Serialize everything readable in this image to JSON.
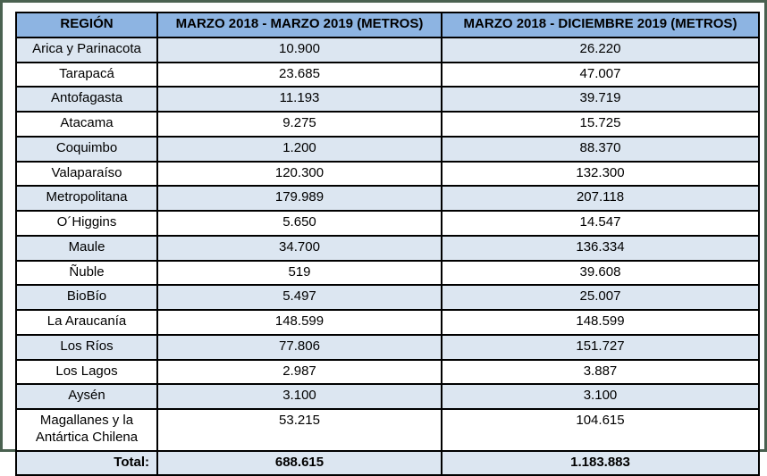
{
  "colors": {
    "header_bg": "#8db4e2",
    "band_bg": "#dce6f1",
    "row_bg": "#ffffff",
    "cell_border": "#000000",
    "frame_border": "#49604f"
  },
  "table": {
    "columns": [
      "REGIÓN",
      "MARZO 2018 - MARZO 2019 (METROS)",
      "MARZO 2018 - DICIEMBRE 2019 (METROS)"
    ],
    "rows": [
      {
        "region": "Arica y Parinacota",
        "v1": "10.900",
        "v2": "26.220"
      },
      {
        "region": "Tarapacá",
        "v1": "23.685",
        "v2": "47.007"
      },
      {
        "region": "Antofagasta",
        "v1": "11.193",
        "v2": "39.719"
      },
      {
        "region": "Atacama",
        "v1": "9.275",
        "v2": "15.725"
      },
      {
        "region": "Coquimbo",
        "v1": "1.200",
        "v2": "88.370"
      },
      {
        "region": "Valaparaíso",
        "v1": "120.300",
        "v2": "132.300"
      },
      {
        "region": "Metropolitana",
        "v1": "179.989",
        "v2": "207.118"
      },
      {
        "region": "O´Higgins",
        "v1": "5.650",
        "v2": "14.547"
      },
      {
        "region": "Maule",
        "v1": "34.700",
        "v2": "136.334"
      },
      {
        "region": "Ñuble",
        "v1": "519",
        "v2": "39.608"
      },
      {
        "region": "BioBío",
        "v1": "5.497",
        "v2": "25.007"
      },
      {
        "region": "La Araucanía",
        "v1": "148.599",
        "v2": "148.599"
      },
      {
        "region": "Los Ríos",
        "v1": "77.806",
        "v2": "151.727"
      },
      {
        "region": "Los Lagos",
        "v1": "2.987",
        "v2": "3.887"
      },
      {
        "region": "Aysén",
        "v1": "3.100",
        "v2": "3.100"
      },
      {
        "region": "Magallanes y la Antártica Chilena",
        "v1": "53.215",
        "v2": "104.615"
      }
    ],
    "total": {
      "label": "Total:",
      "v1": "688.615",
      "v2": "1.183.883"
    }
  }
}
